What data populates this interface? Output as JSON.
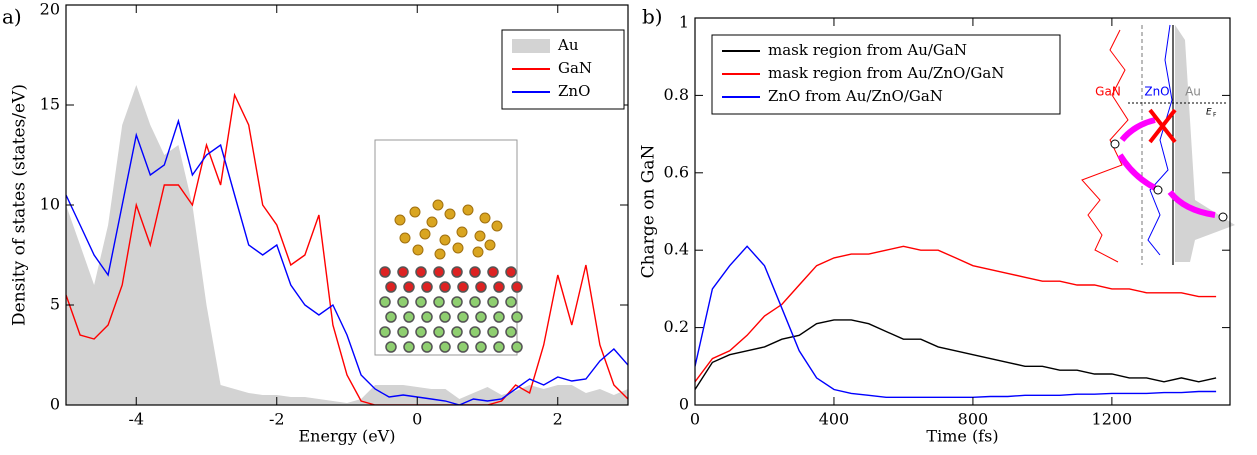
{
  "chart_data": [
    {
      "type": "line",
      "panel_label": "a)",
      "xlabel": "Energy (eV)",
      "ylabel": "Density of states (states/eV)",
      "x": [
        -5,
        -4.8,
        -4.6,
        -4.4,
        -4.2,
        -4,
        -3.8,
        -3.6,
        -3.4,
        -3.2,
        -3,
        -2.8,
        -2.6,
        -2.4,
        -2.2,
        -2,
        -1.8,
        -1.6,
        -1.4,
        -1.2,
        -1,
        -0.8,
        -0.6,
        -0.4,
        -0.2,
        0,
        0.2,
        0.4,
        0.6,
        0.8,
        1,
        1.2,
        1.4,
        1.6,
        1.8,
        2,
        2.2,
        2.4,
        2.6,
        2.8,
        3
      ],
      "xlim": [
        -5,
        3
      ],
      "ylim": [
        0,
        20
      ],
      "xticks": [
        -4,
        -2,
        0,
        2
      ],
      "yticks": [
        0,
        5,
        10,
        15,
        20
      ],
      "legend": "upper right",
      "series": [
        {
          "name": "Au",
          "color": "#d3d3d3",
          "style": "area",
          "values": [
            10,
            8,
            6,
            9,
            14,
            16,
            14,
            12.5,
            13,
            10,
            5,
            1,
            0.8,
            0.6,
            0.5,
            0.5,
            0.4,
            0.4,
            0.3,
            0.2,
            0.1,
            0.3,
            1,
            1,
            1,
            0.9,
            0.8,
            0.8,
            0.3,
            0.6,
            0.9,
            0.5,
            0.7,
            1,
            0.8,
            1,
            1,
            0.6,
            0.8,
            0.5,
            0.8
          ]
        },
        {
          "name": "GaN",
          "color": "#ff0000",
          "style": "line",
          "values": [
            5.5,
            3.5,
            3.3,
            4,
            6,
            10,
            8,
            11,
            11,
            10,
            13,
            11,
            15.5,
            14,
            10,
            9,
            7,
            7.5,
            9.5,
            4,
            1.5,
            0.2,
            0,
            0,
            0,
            0,
            0,
            0,
            0,
            0,
            0,
            0.2,
            1,
            0.6,
            3,
            6.5,
            4,
            7,
            3,
            1,
            0.3
          ]
        },
        {
          "name": "ZnO",
          "color": "#0000ff",
          "style": "line",
          "values": [
            10.5,
            9,
            7.5,
            6.5,
            10,
            13.5,
            11.5,
            12,
            14.2,
            11.5,
            12.5,
            13,
            10.5,
            8,
            7.5,
            8,
            6,
            5,
            4.5,
            5,
            3.5,
            1.5,
            0.8,
            0.4,
            0.5,
            0.4,
            0.3,
            0.2,
            0,
            0.3,
            0.2,
            0.3,
            0.8,
            1.3,
            1,
            1.4,
            1.2,
            1.3,
            2.2,
            2.8,
            2
          ]
        }
      ]
    },
    {
      "type": "line",
      "panel_label": "b)",
      "xlabel": "Time (fs)",
      "ylabel": "Charge on GaN",
      "x": [
        0,
        50,
        100,
        150,
        200,
        250,
        300,
        350,
        400,
        450,
        500,
        550,
        600,
        650,
        700,
        750,
        800,
        850,
        900,
        950,
        1000,
        1050,
        1100,
        1150,
        1200,
        1250,
        1300,
        1350,
        1400,
        1450,
        1500
      ],
      "xlim": [
        0,
        1540
      ],
      "ylim": [
        0,
        1
      ],
      "xticks": [
        0,
        400,
        800,
        1200
      ],
      "yticks": [
        0,
        0.2,
        0.4,
        0.6,
        0.8,
        1
      ],
      "legend": "upper left",
      "inset_labels": [
        "GaN",
        "ZnO",
        "Au",
        "E",
        "F"
      ],
      "series": [
        {
          "name": "mask region from Au/GaN",
          "color": "#000000",
          "style": "line",
          "values": [
            0.04,
            0.11,
            0.13,
            0.14,
            0.15,
            0.17,
            0.18,
            0.21,
            0.22,
            0.22,
            0.21,
            0.19,
            0.17,
            0.17,
            0.15,
            0.14,
            0.13,
            0.12,
            0.11,
            0.1,
            0.1,
            0.09,
            0.09,
            0.08,
            0.08,
            0.07,
            0.07,
            0.06,
            0.07,
            0.06,
            0.07
          ]
        },
        {
          "name": "mask region from Au/ZnO/GaN",
          "color": "#ff0000",
          "style": "line",
          "values": [
            0.06,
            0.12,
            0.14,
            0.18,
            0.23,
            0.26,
            0.31,
            0.36,
            0.38,
            0.39,
            0.39,
            0.4,
            0.41,
            0.4,
            0.4,
            0.38,
            0.36,
            0.35,
            0.34,
            0.33,
            0.32,
            0.32,
            0.31,
            0.31,
            0.3,
            0.3,
            0.29,
            0.29,
            0.29,
            0.28,
            0.28
          ]
        },
        {
          "name": "ZnO from Au/ZnO/GaN",
          "color": "#0000ff",
          "style": "line",
          "values": [
            0.1,
            0.3,
            0.36,
            0.41,
            0.36,
            0.25,
            0.14,
            0.07,
            0.04,
            0.03,
            0.025,
            0.02,
            0.02,
            0.02,
            0.02,
            0.02,
            0.02,
            0.022,
            0.022,
            0.025,
            0.025,
            0.025,
            0.028,
            0.028,
            0.03,
            0.03,
            0.03,
            0.032,
            0.032,
            0.035,
            0.035
          ]
        }
      ]
    }
  ]
}
